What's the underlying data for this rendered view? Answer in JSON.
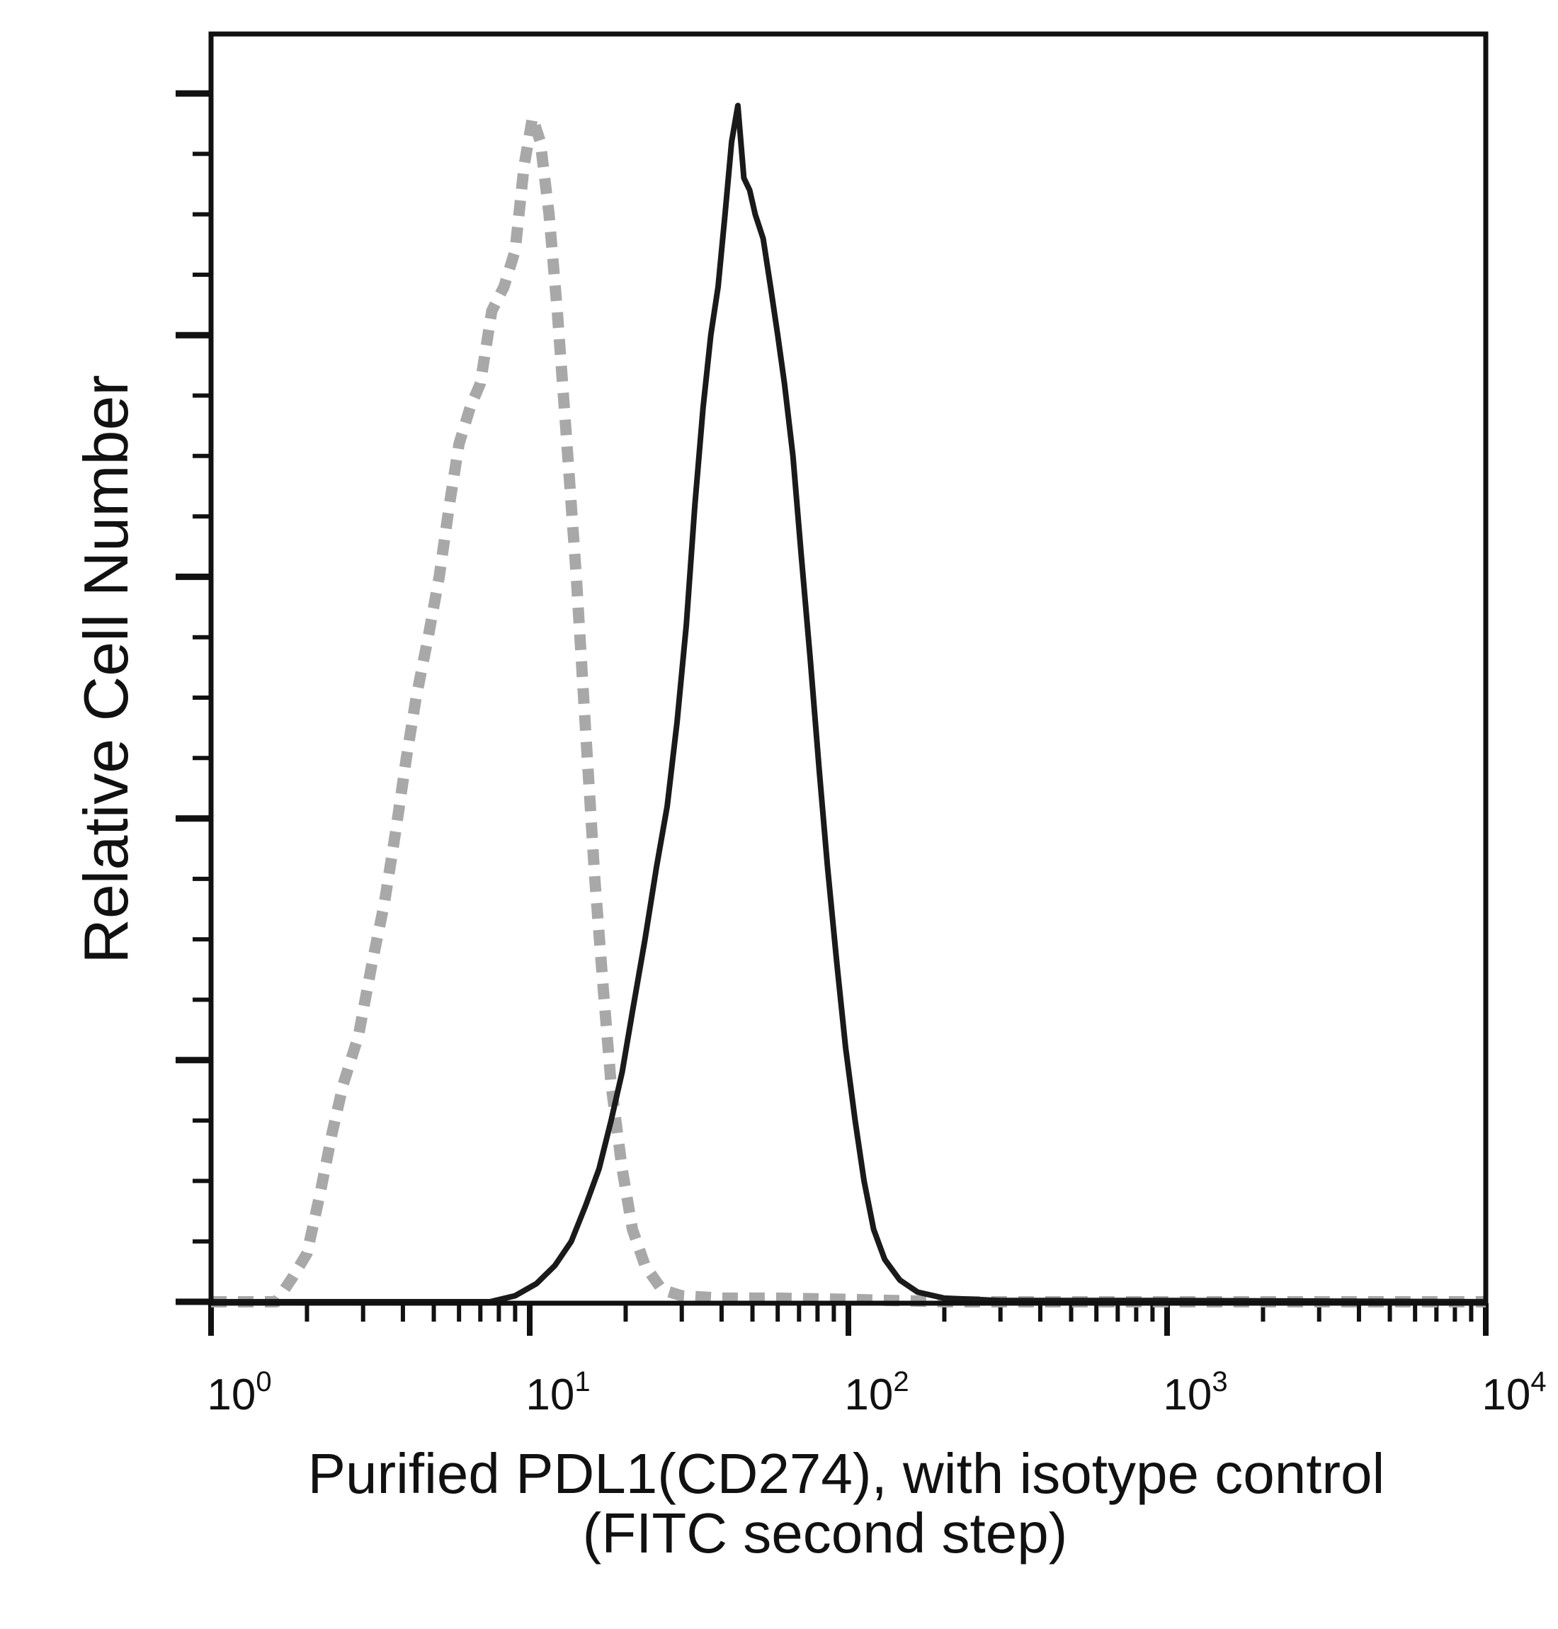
{
  "chart_data": {
    "type": "line",
    "title": "",
    "xlabel": [
      "Purified PDL1(CD274), with isotype control",
      "(FITC second step)"
    ],
    "ylabel": "Relative Cell Number",
    "xscale": "log",
    "xlim": [
      1,
      10000
    ],
    "ylim": [
      0,
      100
    ],
    "x_ticks": [
      {
        "base": "10",
        "exp": "0"
      },
      {
        "base": "10",
        "exp": "1"
      },
      {
        "base": "10",
        "exp": "2"
      },
      {
        "base": "10",
        "exp": "3"
      },
      {
        "base": "10",
        "exp": "4"
      }
    ],
    "y_tick_labels": "none",
    "grid": false,
    "legend": "none",
    "series": [
      {
        "role": "isotype control",
        "color": "#a8a8a8",
        "style": "dashed",
        "points": [
          [
            1.0,
            0
          ],
          [
            1.6,
            0
          ],
          [
            1.8,
            2
          ],
          [
            2.0,
            4
          ],
          [
            2.2,
            9
          ],
          [
            2.4,
            14
          ],
          [
            2.6,
            18
          ],
          [
            2.9,
            22
          ],
          [
            3.2,
            28
          ],
          [
            3.5,
            33
          ],
          [
            3.8,
            39
          ],
          [
            4.1,
            45
          ],
          [
            4.4,
            50
          ],
          [
            4.8,
            55
          ],
          [
            5.2,
            60
          ],
          [
            5.6,
            66
          ],
          [
            6.0,
            71
          ],
          [
            6.5,
            74
          ],
          [
            7.0,
            76
          ],
          [
            7.6,
            82
          ],
          [
            8.3,
            84
          ],
          [
            9.0,
            87
          ],
          [
            9.6,
            94
          ],
          [
            10.2,
            98
          ],
          [
            10.8,
            96
          ],
          [
            11.5,
            90
          ],
          [
            12.2,
            82
          ],
          [
            13.0,
            72
          ],
          [
            14.0,
            60
          ],
          [
            15.0,
            47
          ],
          [
            16.0,
            35
          ],
          [
            17.0,
            26
          ],
          [
            18.0,
            18
          ],
          [
            19.5,
            11
          ],
          [
            21.0,
            6
          ],
          [
            23.0,
            3
          ],
          [
            26.0,
            1
          ],
          [
            30.0,
            0.5
          ],
          [
            40.0,
            0.3
          ],
          [
            60.0,
            0.3
          ],
          [
            100.0,
            0.2
          ],
          [
            200.0,
            0
          ],
          [
            10000,
            0
          ]
        ]
      },
      {
        "role": "PDL1(CD274)",
        "color": "#1a1a1a",
        "style": "solid",
        "points": [
          [
            1.0,
            0
          ],
          [
            7.5,
            0
          ],
          [
            9.0,
            0.5
          ],
          [
            10.5,
            1.5
          ],
          [
            12.0,
            3
          ],
          [
            13.5,
            5
          ],
          [
            15.0,
            8
          ],
          [
            16.5,
            11
          ],
          [
            18.0,
            15
          ],
          [
            19.5,
            19
          ],
          [
            21.0,
            24
          ],
          [
            23.0,
            30
          ],
          [
            25.0,
            36
          ],
          [
            27.0,
            41
          ],
          [
            29.0,
            48
          ],
          [
            31.0,
            56
          ],
          [
            33.0,
            66
          ],
          [
            35.0,
            74
          ],
          [
            37.0,
            80
          ],
          [
            39.0,
            84
          ],
          [
            41.0,
            90
          ],
          [
            43.0,
            96
          ],
          [
            45.0,
            99
          ],
          [
            47.0,
            93
          ],
          [
            49.0,
            92
          ],
          [
            51.0,
            90
          ],
          [
            54.0,
            88
          ],
          [
            57.0,
            84
          ],
          [
            60.0,
            80
          ],
          [
            63.0,
            76
          ],
          [
            67.0,
            70
          ],
          [
            71.0,
            62
          ],
          [
            76.0,
            53
          ],
          [
            81.0,
            44
          ],
          [
            86.0,
            36
          ],
          [
            92.0,
            28
          ],
          [
            98.0,
            21
          ],
          [
            105.0,
            15
          ],
          [
            112.0,
            10
          ],
          [
            120.0,
            6
          ],
          [
            130.0,
            3.5
          ],
          [
            145.0,
            1.8
          ],
          [
            165.0,
            0.8
          ],
          [
            200.0,
            0.3
          ],
          [
            300.0,
            0.1
          ],
          [
            1000,
            0.1
          ],
          [
            10000,
            0
          ]
        ]
      }
    ]
  }
}
